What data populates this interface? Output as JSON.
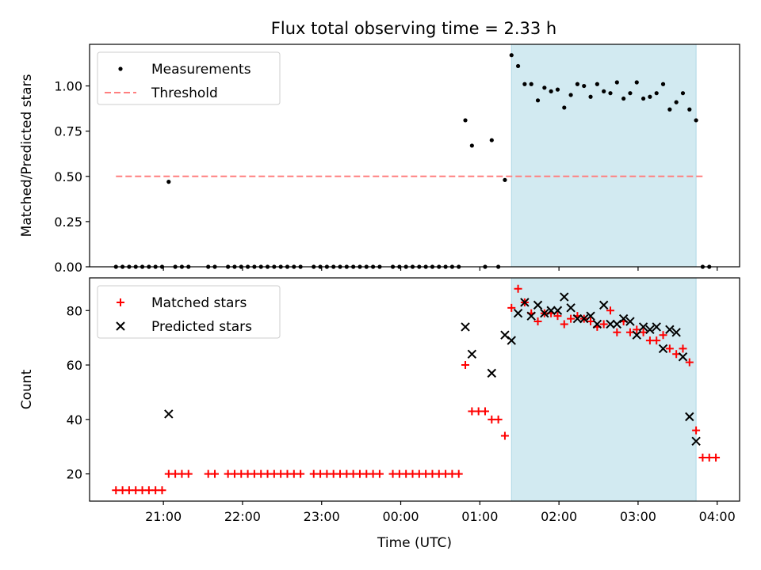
{
  "title": "Flux total observing time = 2.33 h",
  "colors": {
    "measurement": "#000000",
    "threshold": "#ff7f7f",
    "matched": "#ff0000",
    "predicted": "#000000",
    "span": "#add8e6"
  },
  "chart_data": [
    {
      "type": "scatter",
      "ylabel": "Matched/Predicted stars",
      "xlim": [
        "20:04",
        "04:17"
      ],
      "ylim": [
        0,
        1.23
      ],
      "yticks": [
        "0.00",
        "0.25",
        "0.50",
        "0.75",
        "1.00"
      ],
      "legend": {
        "placement": "top-left",
        "entries": [
          "Measurements",
          "Threshold"
        ]
      },
      "threshold": {
        "y": 0.5,
        "x_from": "20:24",
        "x_to": "03:50"
      },
      "span": {
        "from": "01:24",
        "to": "03:44"
      },
      "series": [
        {
          "name": "Measurements",
          "points": [
            [
              "20:24",
              0
            ],
            [
              "20:29",
              0
            ],
            [
              "20:34",
              0
            ],
            [
              "20:39",
              0
            ],
            [
              "20:44",
              0
            ],
            [
              "20:49",
              0
            ],
            [
              "20:54",
              0
            ],
            [
              "20:59",
              0
            ],
            [
              "21:04",
              0.47
            ],
            [
              "21:09",
              0
            ],
            [
              "21:14",
              0
            ],
            [
              "21:19",
              0
            ],
            [
              "21:34",
              0
            ],
            [
              "21:39",
              0
            ],
            [
              "21:49",
              0
            ],
            [
              "21:54",
              0
            ],
            [
              "21:59",
              0
            ],
            [
              "22:04",
              0
            ],
            [
              "22:09",
              0
            ],
            [
              "22:14",
              0
            ],
            [
              "22:19",
              0
            ],
            [
              "22:24",
              0
            ],
            [
              "22:29",
              0
            ],
            [
              "22:34",
              0
            ],
            [
              "22:39",
              0
            ],
            [
              "22:44",
              0
            ],
            [
              "22:54",
              0
            ],
            [
              "22:59",
              0
            ],
            [
              "23:04",
              0
            ],
            [
              "23:09",
              0
            ],
            [
              "23:14",
              0
            ],
            [
              "23:19",
              0
            ],
            [
              "23:24",
              0
            ],
            [
              "23:29",
              0
            ],
            [
              "23:34",
              0
            ],
            [
              "23:39",
              0
            ],
            [
              "23:44",
              0
            ],
            [
              "23:54",
              0
            ],
            [
              "23:59",
              0
            ],
            [
              "00:04",
              0
            ],
            [
              "00:09",
              0
            ],
            [
              "00:14",
              0
            ],
            [
              "00:19",
              0
            ],
            [
              "00:24",
              0
            ],
            [
              "00:29",
              0
            ],
            [
              "00:34",
              0
            ],
            [
              "00:39",
              0
            ],
            [
              "00:44",
              0
            ],
            [
              "00:49",
              0.81
            ],
            [
              "00:54",
              0.67
            ],
            [
              "01:04",
              0
            ],
            [
              "01:09",
              0.7
            ],
            [
              "01:14",
              0
            ],
            [
              "01:19",
              0.48
            ],
            [
              "01:24",
              1.17
            ],
            [
              "01:29",
              1.11
            ],
            [
              "01:34",
              1.01
            ],
            [
              "01:39",
              1.01
            ],
            [
              "01:44",
              0.92
            ],
            [
              "01:49",
              0.99
            ],
            [
              "01:54",
              0.97
            ],
            [
              "01:59",
              0.98
            ],
            [
              "02:04",
              0.88
            ],
            [
              "02:09",
              0.95
            ],
            [
              "02:14",
              1.01
            ],
            [
              "02:19",
              1.0
            ],
            [
              "02:24",
              0.94
            ],
            [
              "02:29",
              1.01
            ],
            [
              "02:34",
              0.97
            ],
            [
              "02:39",
              0.96
            ],
            [
              "02:44",
              1.02
            ],
            [
              "02:49",
              0.93
            ],
            [
              "02:54",
              0.96
            ],
            [
              "02:59",
              1.02
            ],
            [
              "03:04",
              0.93
            ],
            [
              "03:09",
              0.94
            ],
            [
              "03:14",
              0.96
            ],
            [
              "03:19",
              1.01
            ],
            [
              "03:24",
              0.87
            ],
            [
              "03:29",
              0.91
            ],
            [
              "03:34",
              0.96
            ],
            [
              "03:39",
              0.87
            ],
            [
              "03:44",
              0.81
            ],
            [
              "03:49",
              0
            ],
            [
              "03:54",
              0
            ]
          ]
        }
      ]
    },
    {
      "type": "scatter",
      "ylabel": "Count",
      "xlabel": "Time (UTC)",
      "xlim": [
        "20:04",
        "04:17"
      ],
      "ylim": [
        10,
        92
      ],
      "yticks": [
        "20",
        "40",
        "60",
        "80"
      ],
      "xticks": [
        "21:00",
        "22:00",
        "23:00",
        "00:00",
        "01:00",
        "02:00",
        "03:00",
        "04:00"
      ],
      "legend": {
        "placement": "top-left",
        "entries": [
          "Matched stars",
          "Predicted stars"
        ]
      },
      "span": {
        "from": "01:24",
        "to": "03:44"
      },
      "series": [
        {
          "name": "Matched stars",
          "points": [
            [
              "20:24",
              14
            ],
            [
              "20:29",
              14
            ],
            [
              "20:34",
              14
            ],
            [
              "20:39",
              14
            ],
            [
              "20:44",
              14
            ],
            [
              "20:49",
              14
            ],
            [
              "20:54",
              14
            ],
            [
              "20:59",
              14
            ],
            [
              "21:04",
              20
            ],
            [
              "21:09",
              20
            ],
            [
              "21:14",
              20
            ],
            [
              "21:19",
              20
            ],
            [
              "21:34",
              20
            ],
            [
              "21:39",
              20
            ],
            [
              "21:49",
              20
            ],
            [
              "21:54",
              20
            ],
            [
              "21:59",
              20
            ],
            [
              "22:04",
              20
            ],
            [
              "22:09",
              20
            ],
            [
              "22:14",
              20
            ],
            [
              "22:19",
              20
            ],
            [
              "22:24",
              20
            ],
            [
              "22:29",
              20
            ],
            [
              "22:34",
              20
            ],
            [
              "22:39",
              20
            ],
            [
              "22:44",
              20
            ],
            [
              "22:54",
              20
            ],
            [
              "22:59",
              20
            ],
            [
              "23:04",
              20
            ],
            [
              "23:09",
              20
            ],
            [
              "23:14",
              20
            ],
            [
              "23:19",
              20
            ],
            [
              "23:24",
              20
            ],
            [
              "23:29",
              20
            ],
            [
              "23:34",
              20
            ],
            [
              "23:39",
              20
            ],
            [
              "23:44",
              20
            ],
            [
              "23:54",
              20
            ],
            [
              "23:59",
              20
            ],
            [
              "00:04",
              20
            ],
            [
              "00:09",
              20
            ],
            [
              "00:14",
              20
            ],
            [
              "00:19",
              20
            ],
            [
              "00:24",
              20
            ],
            [
              "00:29",
              20
            ],
            [
              "00:34",
              20
            ],
            [
              "00:39",
              20
            ],
            [
              "00:44",
              20
            ],
            [
              "00:49",
              60
            ],
            [
              "00:54",
              43
            ],
            [
              "00:59",
              43
            ],
            [
              "01:04",
              43
            ],
            [
              "01:09",
              40
            ],
            [
              "01:14",
              40
            ],
            [
              "01:19",
              34
            ],
            [
              "01:24",
              81
            ],
            [
              "01:29",
              88
            ],
            [
              "01:34",
              83
            ],
            [
              "01:39",
              79
            ],
            [
              "01:44",
              76
            ],
            [
              "01:49",
              79
            ],
            [
              "01:54",
              79
            ],
            [
              "01:59",
              78
            ],
            [
              "02:04",
              75
            ],
            [
              "02:09",
              77
            ],
            [
              "02:14",
              78
            ],
            [
              "02:19",
              77
            ],
            [
              "02:24",
              76
            ],
            [
              "02:29",
              74
            ],
            [
              "02:34",
              75
            ],
            [
              "02:39",
              80
            ],
            [
              "02:44",
              72
            ],
            [
              "02:49",
              76
            ],
            [
              "02:54",
              72
            ],
            [
              "02:59",
              73
            ],
            [
              "03:04",
              72
            ],
            [
              "03:09",
              69
            ],
            [
              "03:14",
              69
            ],
            [
              "03:19",
              71
            ],
            [
              "03:24",
              66
            ],
            [
              "03:29",
              64
            ],
            [
              "03:34",
              66
            ],
            [
              "03:39",
              61
            ],
            [
              "03:44",
              36
            ],
            [
              "03:49",
              26
            ],
            [
              "03:54",
              26
            ],
            [
              "03:59",
              26
            ]
          ]
        },
        {
          "name": "Predicted stars",
          "points": [
            [
              "21:04",
              42
            ],
            [
              "00:49",
              74
            ],
            [
              "00:54",
              64
            ],
            [
              "01:09",
              57
            ],
            [
              "01:19",
              71
            ],
            [
              "01:24",
              69
            ],
            [
              "01:29",
              79
            ],
            [
              "01:34",
              83
            ],
            [
              "01:39",
              78
            ],
            [
              "01:44",
              82
            ],
            [
              "01:49",
              79
            ],
            [
              "01:54",
              80
            ],
            [
              "01:59",
              80
            ],
            [
              "02:04",
              85
            ],
            [
              "02:09",
              81
            ],
            [
              "02:14",
              77
            ],
            [
              "02:19",
              77
            ],
            [
              "02:24",
              78
            ],
            [
              "02:29",
              75
            ],
            [
              "02:34",
              82
            ],
            [
              "02:39",
              75
            ],
            [
              "02:44",
              75
            ],
            [
              "02:49",
              77
            ],
            [
              "02:54",
              76
            ],
            [
              "02:59",
              71
            ],
            [
              "03:04",
              74
            ],
            [
              "03:09",
              73
            ],
            [
              "03:14",
              74
            ],
            [
              "03:19",
              66
            ],
            [
              "03:24",
              73
            ],
            [
              "03:29",
              72
            ],
            [
              "03:34",
              63
            ],
            [
              "03:39",
              41
            ],
            [
              "03:44",
              32
            ]
          ]
        }
      ]
    }
  ]
}
